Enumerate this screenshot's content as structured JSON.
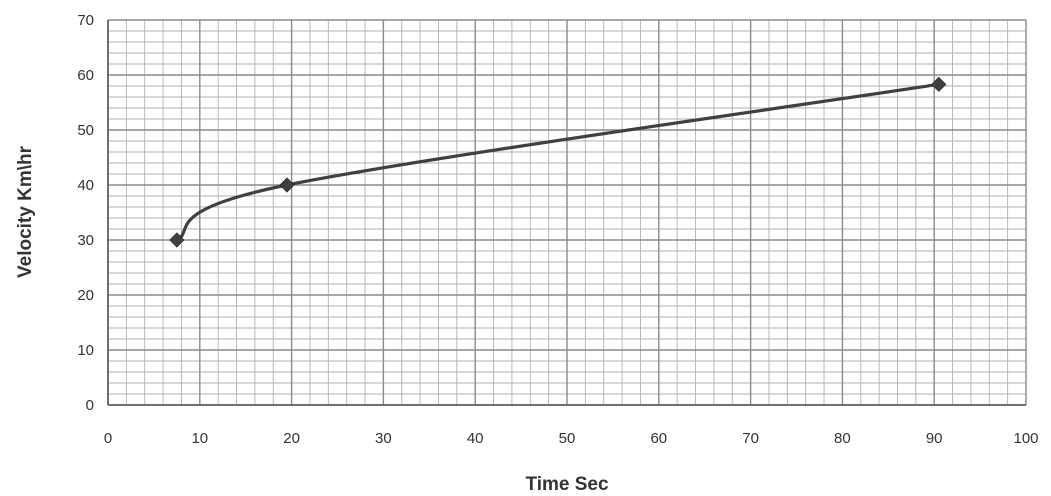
{
  "chart_data": {
    "type": "line",
    "title": "",
    "xlabel": "Time Sec",
    "ylabel": "Velocity Km\\hr",
    "xlim": [
      0,
      100
    ],
    "ylim": [
      0,
      70
    ],
    "x_ticks": [
      "0",
      "10",
      "20",
      "30",
      "40",
      "50",
      "60",
      "70",
      "80",
      "90",
      "100"
    ],
    "y_ticks": [
      "0",
      "10",
      "20",
      "30",
      "40",
      "50",
      "60",
      "70"
    ],
    "grid": true,
    "legend": "none",
    "series": [
      {
        "x": [
          7.5,
          19.5,
          90.5
        ],
        "y": [
          30,
          40,
          58.3
        ],
        "marker": "diamond",
        "color": "#404040"
      }
    ],
    "colors": {
      "major_grid": "#8a8a8a",
      "minor_grid": "#b0b0b0",
      "series_line": "#404040",
      "text": "#333333"
    }
  }
}
